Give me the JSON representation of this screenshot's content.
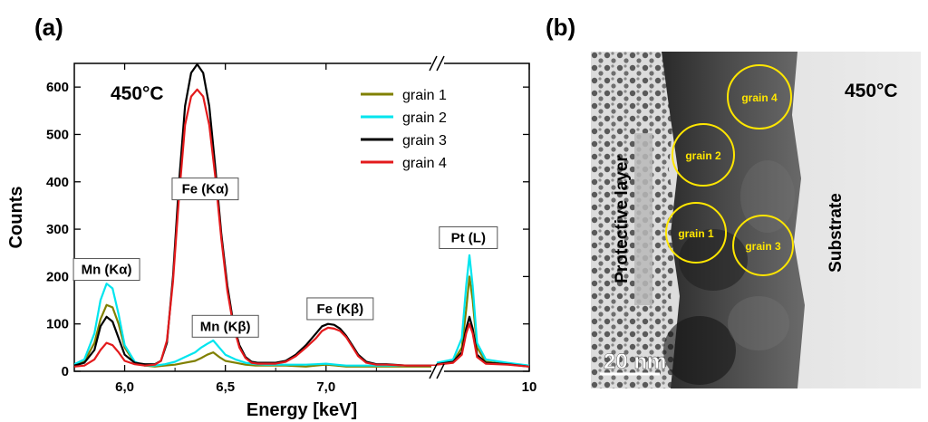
{
  "panels": {
    "a_label": "(a)",
    "b_label": "(b)"
  },
  "chart_data": {
    "type": "line",
    "temperature_label": "450°C",
    "xlabel": "Energy [keV]",
    "ylabel": "Counts",
    "ylim": [
      0,
      650
    ],
    "y_ticks": [
      0,
      100,
      200,
      300,
      400,
      500,
      600
    ],
    "x_ticks": [
      {
        "value": 6.0,
        "label": "6,0"
      },
      {
        "value": 6.5,
        "label": "6,5"
      },
      {
        "value": 7.0,
        "label": "7,0"
      },
      {
        "value": 10.0,
        "label": "10"
      }
    ],
    "x_segments": [
      {
        "xlim": [
          5.75,
          7.55
        ]
      },
      {
        "xlim": [
          9.15,
          10.0
        ]
      }
    ],
    "axis_break": true,
    "legend": {
      "position": "top-right"
    },
    "annotations": [
      {
        "text": "Mn (Kα)",
        "x": 5.91,
        "y": 215
      },
      {
        "text": "Fe (Kα)",
        "x": 6.4,
        "y": 385
      },
      {
        "text": "Mn (Kβ)",
        "x": 6.5,
        "y": 95
      },
      {
        "text": "Fe (Kβ)",
        "x": 7.07,
        "y": 132
      },
      {
        "text": "Pt (L)",
        "x": 9.44,
        "y": 282
      }
    ],
    "series": [
      {
        "name": "grain 1",
        "color": "#808000",
        "width": 2.2,
        "x": [
          5.75,
          5.8,
          5.85,
          5.88,
          5.91,
          5.94,
          5.97,
          6.0,
          6.05,
          6.1,
          6.15,
          6.2,
          6.25,
          6.3,
          6.35,
          6.38,
          6.41,
          6.44,
          6.47,
          6.5,
          6.55,
          6.6,
          6.65,
          6.7,
          6.8,
          6.9,
          6.95,
          7.0,
          7.05,
          7.1,
          7.15,
          7.2,
          7.3,
          7.4,
          7.55,
          9.15,
          9.3,
          9.38,
          9.42,
          9.45,
          9.48,
          9.52,
          9.6,
          9.8,
          10.0
        ],
        "y": [
          15,
          20,
          60,
          110,
          140,
          135,
          100,
          50,
          18,
          12,
          10,
          12,
          14,
          18,
          22,
          28,
          35,
          40,
          30,
          22,
          18,
          14,
          12,
          12,
          12,
          10,
          12,
          14,
          12,
          10,
          10,
          10,
          10,
          10,
          10,
          15,
          20,
          50,
          130,
          200,
          150,
          50,
          20,
          15,
          12
        ]
      },
      {
        "name": "grain 2",
        "color": "#00e5ee",
        "width": 2.2,
        "x": [
          5.75,
          5.8,
          5.85,
          5.88,
          5.91,
          5.94,
          5.97,
          6.0,
          6.05,
          6.1,
          6.15,
          6.2,
          6.25,
          6.3,
          6.35,
          6.38,
          6.41,
          6.44,
          6.47,
          6.5,
          6.55,
          6.6,
          6.65,
          6.7,
          6.8,
          6.9,
          6.95,
          7.0,
          7.05,
          7.1,
          7.15,
          7.2,
          7.3,
          7.4,
          7.55,
          9.15,
          9.3,
          9.38,
          9.42,
          9.45,
          9.48,
          9.52,
          9.6,
          9.8,
          10.0
        ],
        "y": [
          15,
          25,
          80,
          150,
          185,
          175,
          120,
          55,
          20,
          12,
          12,
          15,
          20,
          30,
          40,
          50,
          58,
          65,
          50,
          35,
          25,
          18,
          15,
          14,
          14,
          14,
          15,
          16,
          14,
          12,
          12,
          12,
          12,
          12,
          12,
          18,
          25,
          70,
          180,
          245,
          180,
          60,
          25,
          18,
          12
        ]
      },
      {
        "name": "grain 3",
        "color": "#000000",
        "width": 2.2,
        "x": [
          5.75,
          5.8,
          5.85,
          5.88,
          5.91,
          5.94,
          5.97,
          6.0,
          6.05,
          6.1,
          6.15,
          6.18,
          6.21,
          6.24,
          6.27,
          6.3,
          6.33,
          6.36,
          6.39,
          6.42,
          6.45,
          6.48,
          6.51,
          6.54,
          6.57,
          6.6,
          6.63,
          6.66,
          6.7,
          6.75,
          6.8,
          6.85,
          6.9,
          6.95,
          6.98,
          7.01,
          7.04,
          7.07,
          7.1,
          7.13,
          7.16,
          7.2,
          7.25,
          7.3,
          7.4,
          7.55,
          9.15,
          9.3,
          9.38,
          9.42,
          9.45,
          9.48,
          9.52,
          9.6,
          9.8,
          10.0
        ],
        "y": [
          12,
          18,
          45,
          95,
          115,
          105,
          70,
          35,
          18,
          15,
          15,
          22,
          60,
          200,
          400,
          560,
          630,
          648,
          630,
          560,
          430,
          290,
          180,
          100,
          55,
          30,
          20,
          18,
          18,
          18,
          22,
          35,
          55,
          80,
          95,
          100,
          98,
          90,
          75,
          55,
          35,
          20,
          15,
          15,
          12,
          12,
          15,
          20,
          40,
          90,
          115,
          90,
          35,
          18,
          15,
          10
        ]
      },
      {
        "name": "grain 4",
        "color": "#e31a1c",
        "width": 2.2,
        "x": [
          5.75,
          5.8,
          5.85,
          5.88,
          5.91,
          5.94,
          5.97,
          6.0,
          6.05,
          6.1,
          6.15,
          6.18,
          6.21,
          6.24,
          6.27,
          6.3,
          6.33,
          6.36,
          6.39,
          6.42,
          6.45,
          6.48,
          6.51,
          6.54,
          6.57,
          6.6,
          6.63,
          6.66,
          6.7,
          6.75,
          6.8,
          6.85,
          6.9,
          6.95,
          6.98,
          7.01,
          7.04,
          7.07,
          7.1,
          7.13,
          7.16,
          7.2,
          7.25,
          7.3,
          7.4,
          7.55,
          9.15,
          9.3,
          9.38,
          9.42,
          9.45,
          9.48,
          9.52,
          9.6,
          9.8,
          10.0
        ],
        "y": [
          10,
          12,
          25,
          45,
          60,
          55,
          40,
          22,
          15,
          12,
          14,
          22,
          65,
          190,
          370,
          520,
          580,
          595,
          580,
          520,
          410,
          280,
          170,
          95,
          50,
          28,
          18,
          16,
          16,
          16,
          20,
          32,
          50,
          70,
          85,
          92,
          90,
          85,
          72,
          52,
          32,
          18,
          14,
          14,
          12,
          12,
          14,
          18,
          35,
          80,
          100,
          80,
          30,
          16,
          14,
          10
        ]
      }
    ]
  },
  "tem_image": {
    "temperature_label": "450°C",
    "protective_layer_label": "Protective layer",
    "substrate_label": "Substrate",
    "scale_bar_label": "20 nm",
    "circle_color": "#ffe600",
    "grains": [
      {
        "label": "grain 4"
      },
      {
        "label": "grain 2"
      },
      {
        "label": "grain 1"
      },
      {
        "label": "grain 3"
      }
    ]
  }
}
